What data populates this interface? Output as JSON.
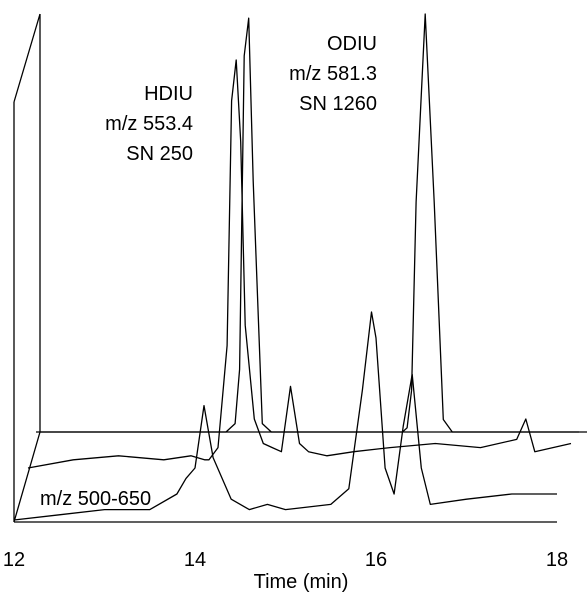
{
  "chart_data": {
    "type": "line",
    "xlabel": "Time (min)",
    "xlim": [
      12,
      18
    ],
    "x_ticks": [
      12,
      14,
      16,
      18
    ],
    "tick_labels": [
      "12",
      "14",
      "16",
      "18"
    ],
    "colors": {
      "trace": "#000000",
      "background": "#ffffff"
    },
    "annotations": [
      {
        "id": "hdiu",
        "lines": [
          "HDIU",
          "m/z 553.4",
          "SN 250"
        ],
        "peak_time": 14.3
      },
      {
        "id": "odiu",
        "lines": [
          "ODIU",
          "m/z 581.3",
          "SN 1260"
        ],
        "peak_time": 16.3
      },
      {
        "id": "range",
        "lines": [
          "m/z 500-650"
        ]
      }
    ],
    "series": [
      {
        "x": [
          12.0,
          13.0,
          13.5,
          13.8,
          14.0,
          14.1,
          14.2,
          14.25,
          14.3,
          14.35,
          14.4,
          14.5,
          14.6,
          14.7,
          14.8,
          14.9,
          15.0,
          15.2,
          15.5,
          15.8,
          15.9,
          16.0,
          16.05,
          16.1,
          16.15,
          16.2,
          16.3,
          16.4,
          16.5,
          16.6,
          16.8,
          17.0,
          17.5,
          17.8,
          18.0
        ],
        "y": [
          0.0,
          0.0,
          0.0,
          0.0,
          0.0,
          0.0,
          0.02,
          0.15,
          0.9,
          0.99,
          0.6,
          0.02,
          0.0,
          0.0,
          0.0,
          0.0,
          0.0,
          0.0,
          0.0,
          0.0,
          0.0,
          0.0,
          0.0,
          0.01,
          0.1,
          0.55,
          1.0,
          0.55,
          0.03,
          0.0,
          0.0,
          0.0,
          0.0,
          0.0,
          0.0
        ]
      },
      {
        "x": [
          12.0,
          12.5,
          13.0,
          13.5,
          13.8,
          13.95,
          14.0,
          14.1,
          14.2,
          14.25,
          14.3,
          14.35,
          14.4,
          14.5,
          14.6,
          14.7,
          14.8,
          14.9,
          15.0,
          15.1,
          15.3,
          15.6,
          16.0,
          16.5,
          17.0,
          17.4,
          17.5,
          17.6,
          18.0
        ],
        "y": [
          0.0,
          0.02,
          0.03,
          0.02,
          0.03,
          0.02,
          0.02,
          0.05,
          0.3,
          0.9,
          1.0,
          0.8,
          0.35,
          0.12,
          0.06,
          0.05,
          0.04,
          0.2,
          0.06,
          0.04,
          0.03,
          0.04,
          0.05,
          0.06,
          0.05,
          0.07,
          0.12,
          0.04,
          0.06
        ]
      },
      {
        "x": [
          12.0,
          12.5,
          13.0,
          13.5,
          13.8,
          13.9,
          14.0,
          14.1,
          14.2,
          14.4,
          14.6,
          14.8,
          15.0,
          15.5,
          15.7,
          15.85,
          15.95,
          16.0,
          16.1,
          16.2,
          16.3,
          16.4,
          16.5,
          16.6,
          17.0,
          17.5,
          18.0
        ],
        "y": [
          0.0,
          0.01,
          0.02,
          0.02,
          0.05,
          0.08,
          0.1,
          0.22,
          0.12,
          0.04,
          0.02,
          0.03,
          0.02,
          0.03,
          0.06,
          0.25,
          0.4,
          0.35,
          0.1,
          0.05,
          0.18,
          0.28,
          0.1,
          0.03,
          0.04,
          0.05,
          0.05
        ]
      }
    ]
  }
}
